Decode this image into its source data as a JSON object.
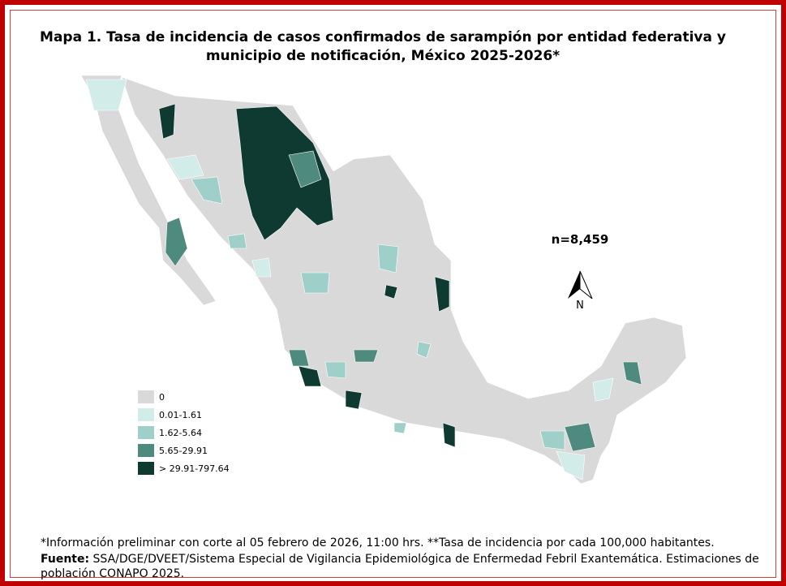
{
  "title": [
    "Mapa 1. Tasa de incidencia de casos confirmados de sarampión por entidad federativa y",
    "municipio de  notificación, México 2025-2026*"
  ],
  "total_label": "n=8,459",
  "north_label": "N",
  "legend": [
    {
      "label": "0",
      "color": "#d9d9d9"
    },
    {
      "label": "0.01-1.61",
      "color": "#d2ecea"
    },
    {
      "label": "1.62-5.64",
      "color": "#9fcfc9"
    },
    {
      "label": "5.65-29.91",
      "color": "#4f8a7f"
    },
    {
      "label": "> 29.91-797.64",
      "color": "#0e3a32"
    }
  ],
  "footnotes": {
    "note": "*Información preliminar con corte al 05 febrero de 2026, 11:00 hrs. **Tasa de incidencia por cada 100,000 habitantes.",
    "source_label": "Fuente:",
    "source": "SSA/DGE/DVEET/Sistema Especial de Vigilancia Epidemiológica de Enfermedad Febril Exantemática. Estimaciones de población CONAPO 2025."
  }
}
